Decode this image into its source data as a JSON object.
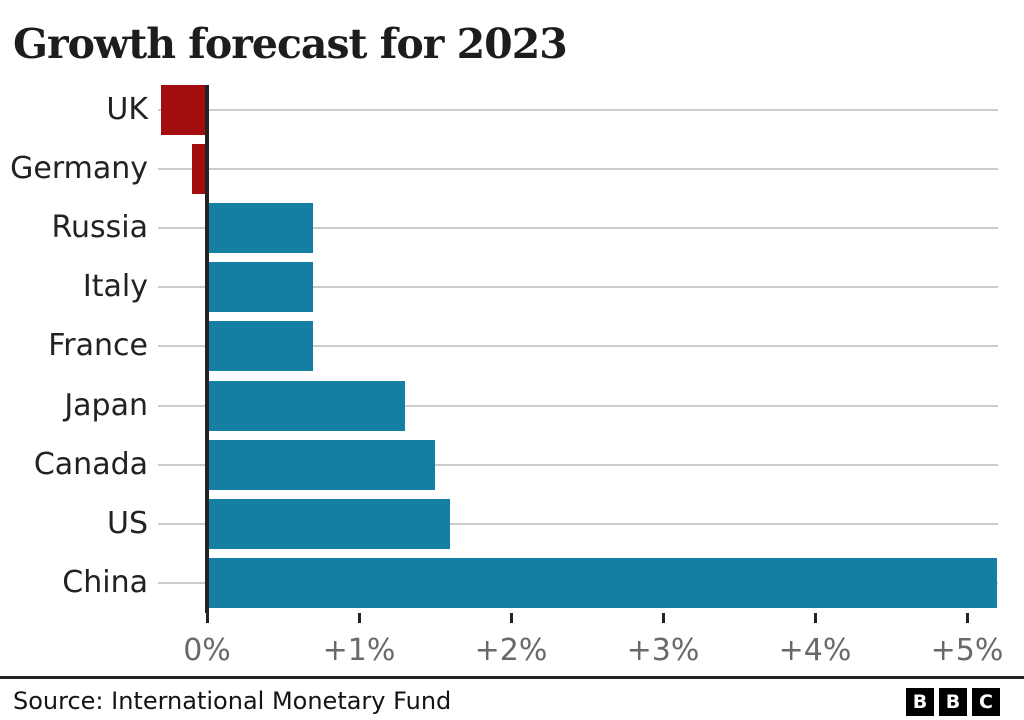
{
  "page": {
    "title": "Growth forecast for 2023",
    "footer": {
      "source": "Source: International Monetary Fund",
      "logo_letters": [
        "B",
        "B",
        "C"
      ]
    }
  },
  "chart_data": {
    "type": "bar",
    "orientation": "horizontal",
    "title": "Growth forecast for 2023",
    "categories": [
      "UK",
      "Germany",
      "Russia",
      "Italy",
      "France",
      "Japan",
      "Canada",
      "US",
      "China"
    ],
    "values": [
      -0.3,
      -0.1,
      0.7,
      0.7,
      0.7,
      1.3,
      1.5,
      1.6,
      5.2
    ],
    "value_unit": "%",
    "x_tick_values": [
      0,
      1,
      2,
      3,
      4,
      5
    ],
    "x_tick_labels": [
      "0%",
      "+1%",
      "+2%",
      "+3%",
      "+4%",
      "+5%"
    ],
    "xlim": [
      -0.32,
      5.2
    ],
    "grid": true,
    "legend": false,
    "colors": {
      "positive_bar": "#157fa3",
      "negative_bar": "#a40d10",
      "gridline": "#cccccc",
      "axis_line": "#232323",
      "tick_mark": "#232323",
      "tick_label_text": "#696969",
      "category_label_text": "#222222",
      "title_text": "#1d1d1b"
    }
  }
}
